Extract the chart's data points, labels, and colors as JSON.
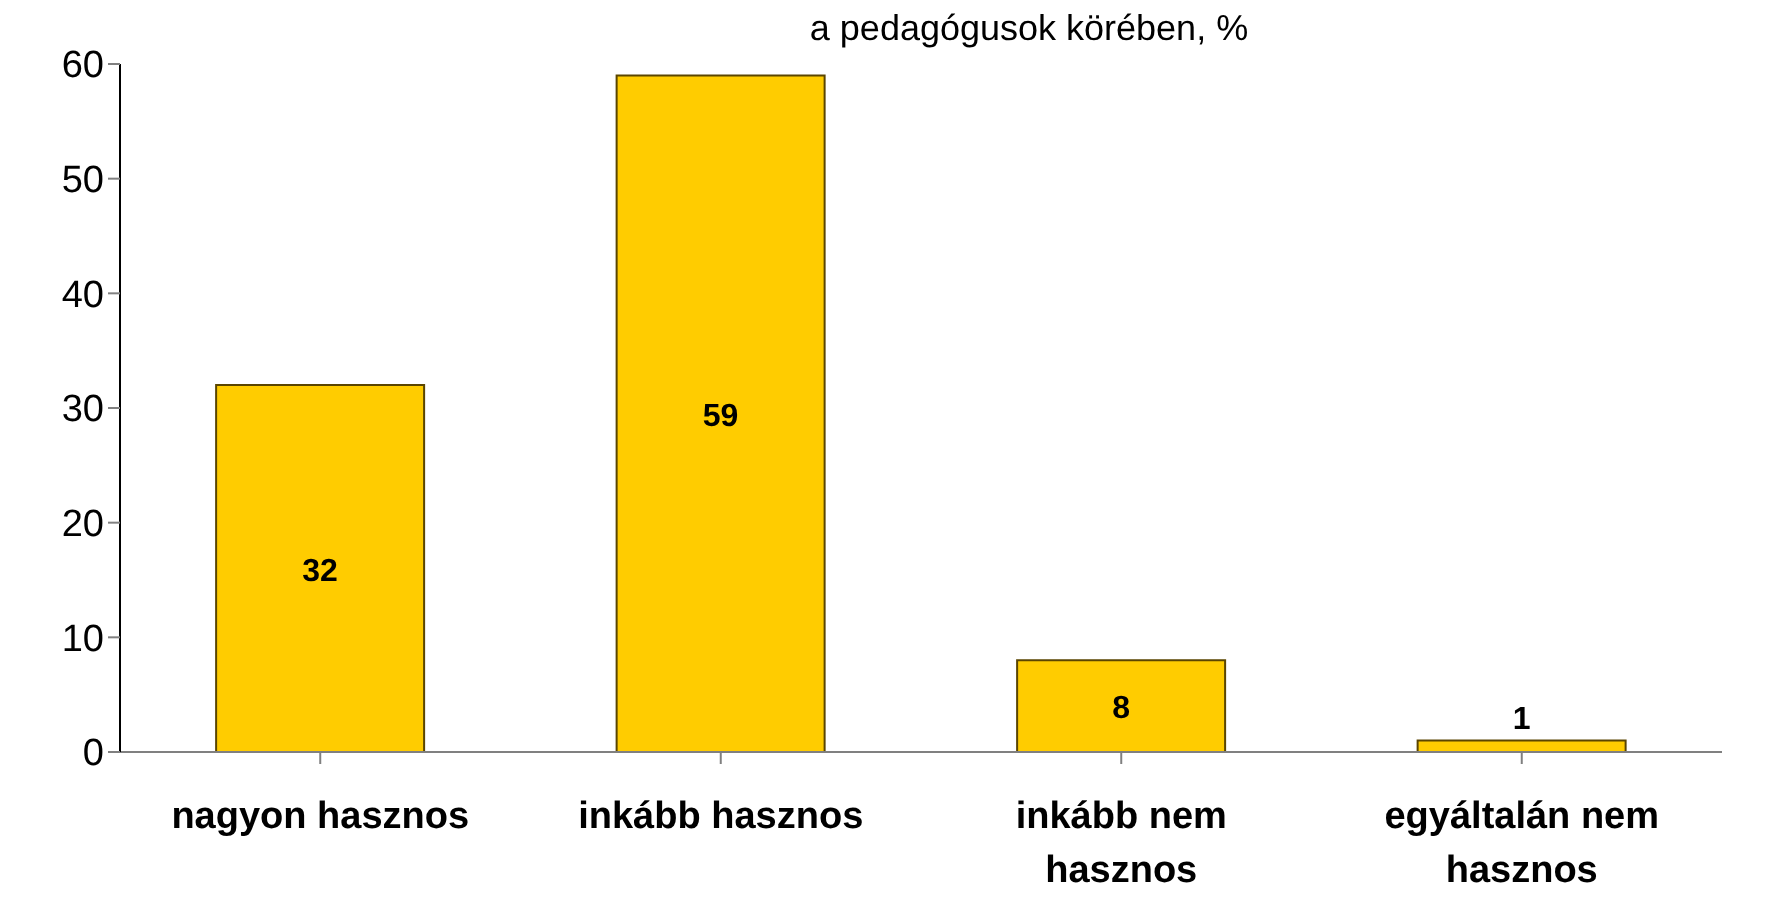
{
  "chart_data": {
    "type": "bar",
    "title": "a pedagógusok körében, %",
    "categories": [
      "nagyon hasznos",
      "inkább hasznos",
      "inkább nem hasznos",
      "egyáltalán nem hasznos"
    ],
    "values": [
      32,
      59,
      8,
      1
    ],
    "color": "#ffcc00",
    "ylim": [
      0,
      60
    ],
    "yticks": [
      0,
      10,
      20,
      30,
      40,
      50,
      60
    ],
    "grid": false,
    "data_labels": true
  }
}
